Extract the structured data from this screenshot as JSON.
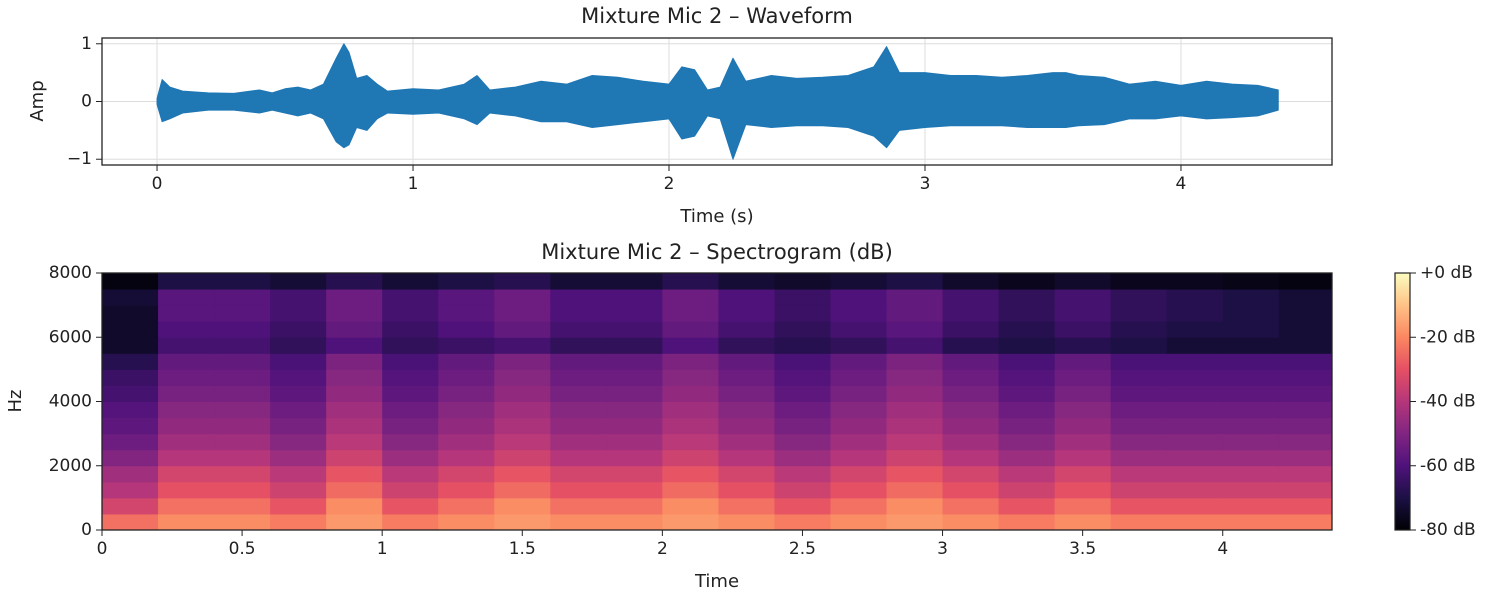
{
  "chart_data": [
    {
      "type": "waveform",
      "title": "Mixture Mic 2 – Waveform",
      "xlabel": "Time (s)",
      "ylabel": "Amp",
      "color": "#1f77b4",
      "grid": true,
      "xlim": [
        -0.215,
        4.59
      ],
      "ylim": [
        -1.1,
        1.1
      ],
      "xticks": [
        0,
        1,
        2,
        3,
        4
      ],
      "yticks": [
        {
          "value": -1,
          "label": "−1"
        },
        0,
        1
      ],
      "x": [
        0,
        0.02,
        0.05,
        0.1,
        0.2,
        0.3,
        0.4,
        0.45,
        0.5,
        0.55,
        0.6,
        0.65,
        0.7,
        0.73,
        0.75,
        0.78,
        0.82,
        0.86,
        0.9,
        1.0,
        1.1,
        1.2,
        1.25,
        1.3,
        1.4,
        1.5,
        1.6,
        1.7,
        1.8,
        1.9,
        2.0,
        2.05,
        2.1,
        2.15,
        2.2,
        2.25,
        2.3,
        2.4,
        2.5,
        2.6,
        2.7,
        2.8,
        2.85,
        2.9,
        3.0,
        3.1,
        3.2,
        3.3,
        3.4,
        3.5,
        3.55,
        3.6,
        3.7,
        3.8,
        3.9,
        4.0,
        4.1,
        4.2,
        4.3,
        4.38
      ],
      "upper": [
        0.05,
        0.38,
        0.25,
        0.18,
        0.15,
        0.14,
        0.2,
        0.15,
        0.22,
        0.25,
        0.2,
        0.3,
        0.75,
        1.0,
        0.85,
        0.4,
        0.45,
        0.3,
        0.18,
        0.22,
        0.2,
        0.3,
        0.45,
        0.2,
        0.25,
        0.35,
        0.3,
        0.45,
        0.42,
        0.35,
        0.3,
        0.6,
        0.55,
        0.2,
        0.25,
        0.75,
        0.35,
        0.45,
        0.4,
        0.42,
        0.45,
        0.6,
        0.95,
        0.5,
        0.5,
        0.45,
        0.45,
        0.42,
        0.45,
        0.5,
        0.5,
        0.45,
        0.42,
        0.3,
        0.35,
        0.28,
        0.35,
        0.3,
        0.28,
        0.2
      ],
      "lower": [
        -0.05,
        -0.35,
        -0.3,
        -0.2,
        -0.15,
        -0.15,
        -0.2,
        -0.15,
        -0.2,
        -0.25,
        -0.2,
        -0.3,
        -0.7,
        -0.8,
        -0.75,
        -0.45,
        -0.5,
        -0.3,
        -0.2,
        -0.22,
        -0.2,
        -0.3,
        -0.4,
        -0.2,
        -0.25,
        -0.35,
        -0.35,
        -0.45,
        -0.4,
        -0.35,
        -0.3,
        -0.65,
        -0.6,
        -0.25,
        -0.3,
        -1.0,
        -0.4,
        -0.45,
        -0.42,
        -0.42,
        -0.45,
        -0.6,
        -0.8,
        -0.5,
        -0.45,
        -0.42,
        -0.42,
        -0.42,
        -0.45,
        -0.45,
        -0.45,
        -0.42,
        -0.4,
        -0.3,
        -0.3,
        -0.25,
        -0.3,
        -0.28,
        -0.25,
        -0.15
      ]
    },
    {
      "type": "heatmap",
      "title": "Mixture Mic 2 – Spectrogram (dB)",
      "xlabel": "Time",
      "ylabel": "Hz",
      "xlim": [
        0,
        4.39
      ],
      "ylim": [
        0,
        8000
      ],
      "xticks": [
        0,
        0.5,
        1,
        1.5,
        2,
        2.5,
        3,
        3.5,
        4
      ],
      "yticks": [
        0,
        2000,
        4000,
        6000,
        8000
      ],
      "xbins": [
        0,
        0.2,
        0.4,
        0.6,
        0.8,
        1.0,
        1.2,
        1.4,
        1.6,
        1.8,
        2.0,
        2.2,
        2.4,
        2.6,
        2.8,
        3.0,
        3.2,
        3.4,
        3.6,
        3.8,
        4.0,
        4.2,
        4.39
      ],
      "ybins": [
        0,
        500,
        1000,
        1500,
        2000,
        2500,
        3000,
        3500,
        4000,
        4500,
        5000,
        5500,
        6000,
        6500,
        7000,
        7500,
        8000
      ],
      "values": [
        [
          -24,
          -19,
          -19,
          -22,
          -17,
          -22,
          -19,
          -17,
          -19,
          -19,
          -17,
          -19,
          -22,
          -19,
          -17,
          -19,
          -22,
          -19,
          -22,
          -22,
          -22,
          -22
        ],
        [
          -34,
          -24,
          -24,
          -29,
          -19,
          -29,
          -24,
          -19,
          -24,
          -24,
          -19,
          -24,
          -29,
          -24,
          -19,
          -24,
          -29,
          -24,
          -29,
          -29,
          -29,
          -29
        ],
        [
          -40,
          -30,
          -30,
          -35,
          -25,
          -35,
          -30,
          -25,
          -30,
          -30,
          -25,
          -30,
          -35,
          -30,
          -25,
          -30,
          -35,
          -30,
          -35,
          -35,
          -35,
          -35
        ],
        [
          -44,
          -34,
          -34,
          -39,
          -29,
          -39,
          -34,
          -29,
          -34,
          -34,
          -29,
          -34,
          -39,
          -34,
          -29,
          -34,
          -39,
          -34,
          -39,
          -39,
          -39,
          -39
        ],
        [
          -50,
          -40,
          -40,
          -45,
          -35,
          -45,
          -40,
          -35,
          -40,
          -40,
          -35,
          -40,
          -45,
          -40,
          -35,
          -40,
          -45,
          -40,
          -45,
          -45,
          -45,
          -45
        ],
        [
          -54,
          -44,
          -44,
          -49,
          -39,
          -49,
          -44,
          -39,
          -44,
          -44,
          -39,
          -44,
          -49,
          -44,
          -39,
          -44,
          -49,
          -44,
          -49,
          -49,
          -49,
          -49
        ],
        [
          -57,
          -47,
          -47,
          -52,
          -42,
          -52,
          -47,
          -42,
          -47,
          -47,
          -42,
          -47,
          -52,
          -47,
          -42,
          -47,
          -52,
          -47,
          -52,
          -52,
          -52,
          -52
        ],
        [
          -59,
          -49,
          -49,
          -54,
          -44,
          -54,
          -49,
          -44,
          -49,
          -49,
          -44,
          -49,
          -54,
          -49,
          -44,
          -49,
          -54,
          -49,
          -54,
          -54,
          -54,
          -54
        ],
        [
          -62,
          -52,
          -52,
          -57,
          -47,
          -57,
          -52,
          -47,
          -52,
          -52,
          -47,
          -52,
          -57,
          -52,
          -47,
          -52,
          -57,
          -52,
          -57,
          -57,
          -57,
          -57
        ],
        [
          -64,
          -54,
          -54,
          -59,
          -49,
          -59,
          -54,
          -49,
          -54,
          -54,
          -49,
          -54,
          -59,
          -54,
          -49,
          -54,
          -59,
          -54,
          -59,
          -59,
          -59,
          -59
        ],
        [
          -68,
          -56,
          -56,
          -61,
          -51,
          -61,
          -56,
          -51,
          -56,
          -56,
          -51,
          -56,
          -61,
          -56,
          -51,
          -56,
          -61,
          -56,
          -61,
          -61,
          -61,
          -61
        ],
        [
          -74,
          -62,
          -62,
          -66,
          -60,
          -66,
          -64,
          -62,
          -66,
          -66,
          -60,
          -66,
          -68,
          -66,
          -62,
          -68,
          -70,
          -68,
          -70,
          -72,
          -72,
          -72
        ],
        [
          -74,
          -60,
          -60,
          -64,
          -56,
          -64,
          -60,
          -56,
          -62,
          -62,
          -56,
          -62,
          -66,
          -62,
          -58,
          -64,
          -68,
          -64,
          -68,
          -70,
          -70,
          -72
        ],
        [
          -74,
          -58,
          -58,
          -62,
          -54,
          -62,
          -58,
          -54,
          -60,
          -60,
          -54,
          -60,
          -64,
          -60,
          -56,
          -62,
          -66,
          -62,
          -66,
          -68,
          -70,
          -72
        ],
        [
          -72,
          -58,
          -58,
          -62,
          -54,
          -62,
          -58,
          -54,
          -60,
          -60,
          -54,
          -60,
          -64,
          -60,
          -56,
          -62,
          -66,
          -62,
          -66,
          -68,
          -70,
          -72
        ],
        [
          -78,
          -70,
          -70,
          -72,
          -68,
          -72,
          -70,
          -68,
          -72,
          -72,
          -68,
          -72,
          -74,
          -72,
          -70,
          -74,
          -76,
          -74,
          -76,
          -76,
          -77,
          -78
        ]
      ],
      "clim": [
        -80,
        0
      ],
      "colormap": [
        "#000004",
        "#1c1044",
        "#4f127b",
        "#812581",
        "#b5367a",
        "#e55064",
        "#fb8761",
        "#fec287",
        "#fcfdbf"
      ],
      "cticks": [
        {
          "value": 0,
          "label": "+0 dB"
        },
        {
          "value": -20,
          "label": "-20 dB"
        },
        {
          "value": -40,
          "label": "-40 dB"
        },
        {
          "value": -60,
          "label": "-60 dB"
        },
        {
          "value": -80,
          "label": "-80 dB"
        }
      ]
    }
  ]
}
